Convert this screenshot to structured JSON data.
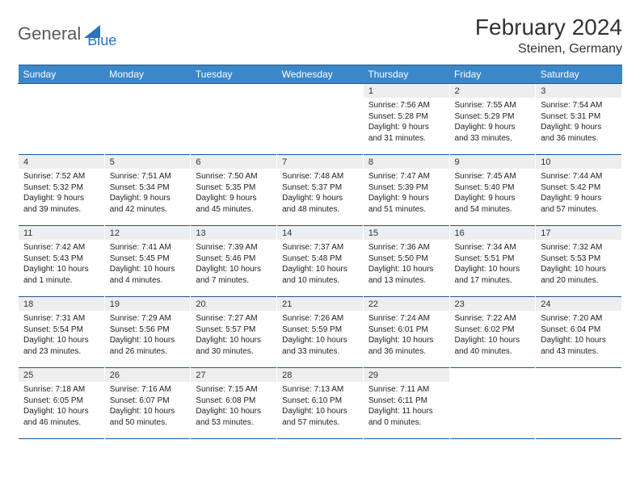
{
  "logo": {
    "part1": "General",
    "part2": "Blue"
  },
  "title": "February 2024",
  "location": "Steinen, Germany",
  "colors": {
    "header_bg": "#3b87c8",
    "header_border": "#1a5a94",
    "daynum_bg": "#eeeeee",
    "text": "#333333",
    "logo_gray": "#5a5a5a",
    "logo_blue": "#2b72b8"
  },
  "day_headers": [
    "Sunday",
    "Monday",
    "Tuesday",
    "Wednesday",
    "Thursday",
    "Friday",
    "Saturday"
  ],
  "weeks": [
    [
      {
        "empty": true
      },
      {
        "empty": true
      },
      {
        "empty": true
      },
      {
        "empty": true
      },
      {
        "num": "1",
        "sunrise": "Sunrise: 7:56 AM",
        "sunset": "Sunset: 5:28 PM",
        "daylight": "Daylight: 9 hours and 31 minutes."
      },
      {
        "num": "2",
        "sunrise": "Sunrise: 7:55 AM",
        "sunset": "Sunset: 5:29 PM",
        "daylight": "Daylight: 9 hours and 33 minutes."
      },
      {
        "num": "3",
        "sunrise": "Sunrise: 7:54 AM",
        "sunset": "Sunset: 5:31 PM",
        "daylight": "Daylight: 9 hours and 36 minutes."
      }
    ],
    [
      {
        "num": "4",
        "sunrise": "Sunrise: 7:52 AM",
        "sunset": "Sunset: 5:32 PM",
        "daylight": "Daylight: 9 hours and 39 minutes."
      },
      {
        "num": "5",
        "sunrise": "Sunrise: 7:51 AM",
        "sunset": "Sunset: 5:34 PM",
        "daylight": "Daylight: 9 hours and 42 minutes."
      },
      {
        "num": "6",
        "sunrise": "Sunrise: 7:50 AM",
        "sunset": "Sunset: 5:35 PM",
        "daylight": "Daylight: 9 hours and 45 minutes."
      },
      {
        "num": "7",
        "sunrise": "Sunrise: 7:48 AM",
        "sunset": "Sunset: 5:37 PM",
        "daylight": "Daylight: 9 hours and 48 minutes."
      },
      {
        "num": "8",
        "sunrise": "Sunrise: 7:47 AM",
        "sunset": "Sunset: 5:39 PM",
        "daylight": "Daylight: 9 hours and 51 minutes."
      },
      {
        "num": "9",
        "sunrise": "Sunrise: 7:45 AM",
        "sunset": "Sunset: 5:40 PM",
        "daylight": "Daylight: 9 hours and 54 minutes."
      },
      {
        "num": "10",
        "sunrise": "Sunrise: 7:44 AM",
        "sunset": "Sunset: 5:42 PM",
        "daylight": "Daylight: 9 hours and 57 minutes."
      }
    ],
    [
      {
        "num": "11",
        "sunrise": "Sunrise: 7:42 AM",
        "sunset": "Sunset: 5:43 PM",
        "daylight": "Daylight: 10 hours and 1 minute."
      },
      {
        "num": "12",
        "sunrise": "Sunrise: 7:41 AM",
        "sunset": "Sunset: 5:45 PM",
        "daylight": "Daylight: 10 hours and 4 minutes."
      },
      {
        "num": "13",
        "sunrise": "Sunrise: 7:39 AM",
        "sunset": "Sunset: 5:46 PM",
        "daylight": "Daylight: 10 hours and 7 minutes."
      },
      {
        "num": "14",
        "sunrise": "Sunrise: 7:37 AM",
        "sunset": "Sunset: 5:48 PM",
        "daylight": "Daylight: 10 hours and 10 minutes."
      },
      {
        "num": "15",
        "sunrise": "Sunrise: 7:36 AM",
        "sunset": "Sunset: 5:50 PM",
        "daylight": "Daylight: 10 hours and 13 minutes."
      },
      {
        "num": "16",
        "sunrise": "Sunrise: 7:34 AM",
        "sunset": "Sunset: 5:51 PM",
        "daylight": "Daylight: 10 hours and 17 minutes."
      },
      {
        "num": "17",
        "sunrise": "Sunrise: 7:32 AM",
        "sunset": "Sunset: 5:53 PM",
        "daylight": "Daylight: 10 hours and 20 minutes."
      }
    ],
    [
      {
        "num": "18",
        "sunrise": "Sunrise: 7:31 AM",
        "sunset": "Sunset: 5:54 PM",
        "daylight": "Daylight: 10 hours and 23 minutes."
      },
      {
        "num": "19",
        "sunrise": "Sunrise: 7:29 AM",
        "sunset": "Sunset: 5:56 PM",
        "daylight": "Daylight: 10 hours and 26 minutes."
      },
      {
        "num": "20",
        "sunrise": "Sunrise: 7:27 AM",
        "sunset": "Sunset: 5:57 PM",
        "daylight": "Daylight: 10 hours and 30 minutes."
      },
      {
        "num": "21",
        "sunrise": "Sunrise: 7:26 AM",
        "sunset": "Sunset: 5:59 PM",
        "daylight": "Daylight: 10 hours and 33 minutes."
      },
      {
        "num": "22",
        "sunrise": "Sunrise: 7:24 AM",
        "sunset": "Sunset: 6:01 PM",
        "daylight": "Daylight: 10 hours and 36 minutes."
      },
      {
        "num": "23",
        "sunrise": "Sunrise: 7:22 AM",
        "sunset": "Sunset: 6:02 PM",
        "daylight": "Daylight: 10 hours and 40 minutes."
      },
      {
        "num": "24",
        "sunrise": "Sunrise: 7:20 AM",
        "sunset": "Sunset: 6:04 PM",
        "daylight": "Daylight: 10 hours and 43 minutes."
      }
    ],
    [
      {
        "num": "25",
        "sunrise": "Sunrise: 7:18 AM",
        "sunset": "Sunset: 6:05 PM",
        "daylight": "Daylight: 10 hours and 46 minutes."
      },
      {
        "num": "26",
        "sunrise": "Sunrise: 7:16 AM",
        "sunset": "Sunset: 6:07 PM",
        "daylight": "Daylight: 10 hours and 50 minutes."
      },
      {
        "num": "27",
        "sunrise": "Sunrise: 7:15 AM",
        "sunset": "Sunset: 6:08 PM",
        "daylight": "Daylight: 10 hours and 53 minutes."
      },
      {
        "num": "28",
        "sunrise": "Sunrise: 7:13 AM",
        "sunset": "Sunset: 6:10 PM",
        "daylight": "Daylight: 10 hours and 57 minutes."
      },
      {
        "num": "29",
        "sunrise": "Sunrise: 7:11 AM",
        "sunset": "Sunset: 6:11 PM",
        "daylight": "Daylight: 11 hours and 0 minutes."
      },
      {
        "empty": true
      },
      {
        "empty": true
      }
    ]
  ]
}
